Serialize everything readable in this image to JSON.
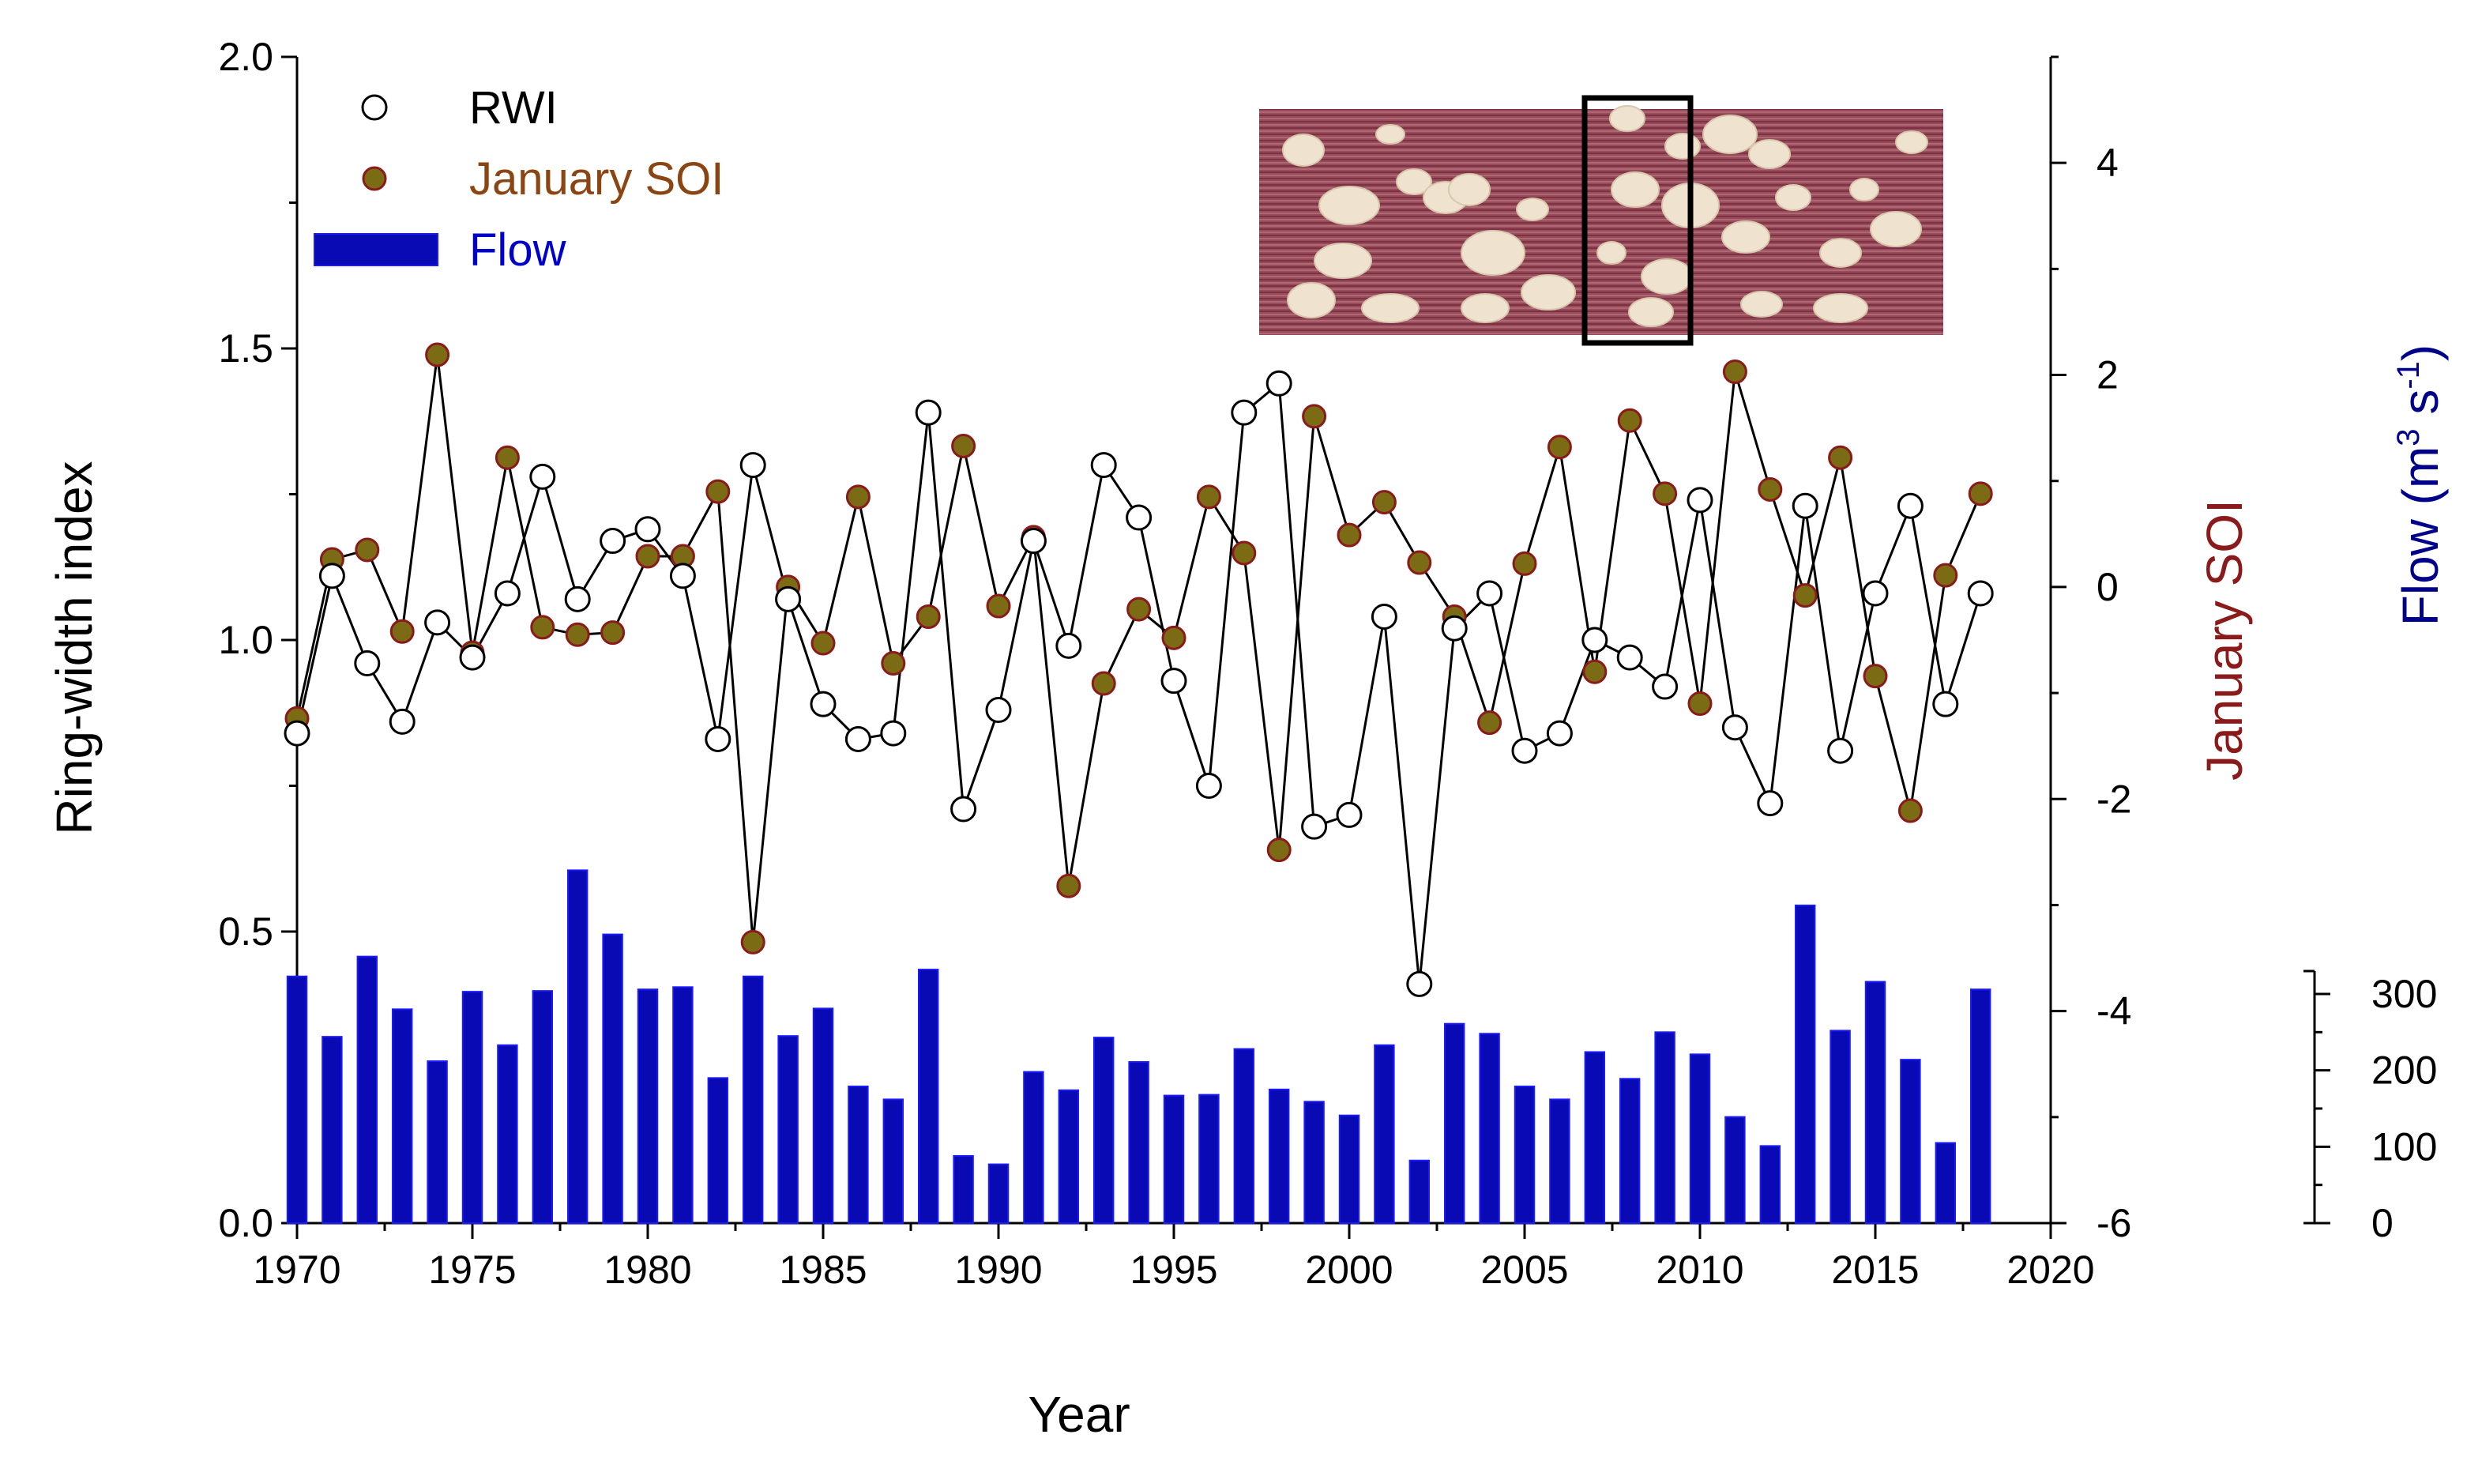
{
  "chart_data": {
    "type": "line+bar",
    "xlabel": "Year",
    "ylabel_left": "Ring-width index",
    "ylabel_right_soi": "January SOI",
    "ylabel_right_flow": "Flow (m3 s-1)",
    "ylabel_right_flow_parts": {
      "prefix": "Flow (m",
      "sup1": "3",
      "mid": " s",
      "sup2": "-1",
      "suffix": ")"
    },
    "xlim": [
      1970,
      2020
    ],
    "ylim_left": [
      0.0,
      2.0
    ],
    "ylim_soi": [
      -6,
      5
    ],
    "ylim_flow": [
      0,
      330
    ],
    "x_ticks": [
      1970,
      1975,
      1980,
      1985,
      1990,
      1995,
      2000,
      2005,
      2010,
      2015,
      2020
    ],
    "y_left_ticks": [
      "0.0",
      "0.5",
      "1.0",
      "1.5",
      "2.0"
    ],
    "y_soi_ticks": [
      "-6",
      "-4",
      "-2",
      "0",
      "2",
      "4"
    ],
    "y_flow_ticks": [
      "0",
      "100",
      "200",
      "300"
    ],
    "legend": [
      {
        "label": "RWI",
        "color": "#000000"
      },
      {
        "label": "January SOI",
        "color": "#8B4513"
      },
      {
        "label": "Flow",
        "color": "#0000CC"
      }
    ],
    "inset": "wood cross-section micrograph",
    "colors": {
      "rwi_fill": "#ffffff",
      "soi_fill": "#7a6b14",
      "soi_edge": "#8B1A1A",
      "flow": "#0a0ab4",
      "flow_edge": "#1a1aff",
      "soi_label": "#8B1A1A",
      "flow_label": "#00008B"
    },
    "years": [
      1970,
      1971,
      1972,
      1973,
      1974,
      1975,
      1976,
      1977,
      1978,
      1979,
      1980,
      1981,
      1982,
      1983,
      1984,
      1985,
      1986,
      1987,
      1988,
      1989,
      1990,
      1991,
      1992,
      1993,
      1994,
      1995,
      1996,
      1997,
      1998,
      1999,
      2000,
      2001,
      2002,
      2003,
      2004,
      2005,
      2006,
      2007,
      2008,
      2009,
      2010,
      2011,
      2012,
      2013,
      2014,
      2015,
      2016,
      2017,
      2018
    ],
    "series": [
      {
        "name": "RWI",
        "axis": "left",
        "values": [
          0.84,
          1.11,
          0.96,
          0.86,
          1.03,
          0.97,
          1.08,
          1.28,
          1.07,
          1.17,
          1.19,
          1.11,
          0.83,
          1.3,
          1.07,
          0.89,
          0.83,
          0.84,
          1.39,
          0.71,
          0.88,
          1.17,
          0.99,
          1.3,
          1.21,
          0.93,
          0.75,
          1.39,
          1.44,
          0.68,
          0.7,
          1.04,
          0.41,
          1.02,
          1.08,
          0.81,
          0.84,
          1.0,
          0.97,
          0.92,
          1.24,
          0.85,
          0.72,
          1.23,
          0.81,
          1.08,
          1.23,
          0.89,
          1.08
        ]
      },
      {
        "name": "January SOI",
        "axis": "soi",
        "values": [
          -1.24,
          0.26,
          0.35,
          -0.42,
          2.19,
          -0.62,
          1.22,
          -0.38,
          -0.45,
          -0.43,
          0.29,
          0.29,
          0.9,
          -3.35,
          0.0,
          -0.53,
          0.85,
          -0.72,
          -0.28,
          1.33,
          -0.18,
          0.47,
          -2.82,
          -0.91,
          -0.21,
          -0.48,
          0.85,
          0.32,
          -2.48,
          1.61,
          0.49,
          0.8,
          0.23,
          -0.28,
          -1.28,
          0.22,
          1.32,
          -0.8,
          1.57,
          0.88,
          -1.1,
          2.03,
          0.92,
          -0.08,
          1.22,
          -0.84,
          -2.11,
          0.11,
          0.88
        ]
      },
      {
        "name": "Flow",
        "axis": "flow",
        "values": [
          323,
          244,
          349,
          280,
          212,
          303,
          233,
          304,
          462,
          378,
          306,
          309,
          190,
          323,
          245,
          281,
          179,
          162,
          332,
          88,
          77,
          198,
          174,
          243,
          211,
          167,
          168,
          228,
          175,
          159,
          141,
          233,
          82,
          261,
          248,
          179,
          162,
          224,
          189,
          250,
          221,
          139,
          101,
          416,
          252,
          316,
          214,
          105,
          306
        ]
      }
    ]
  }
}
